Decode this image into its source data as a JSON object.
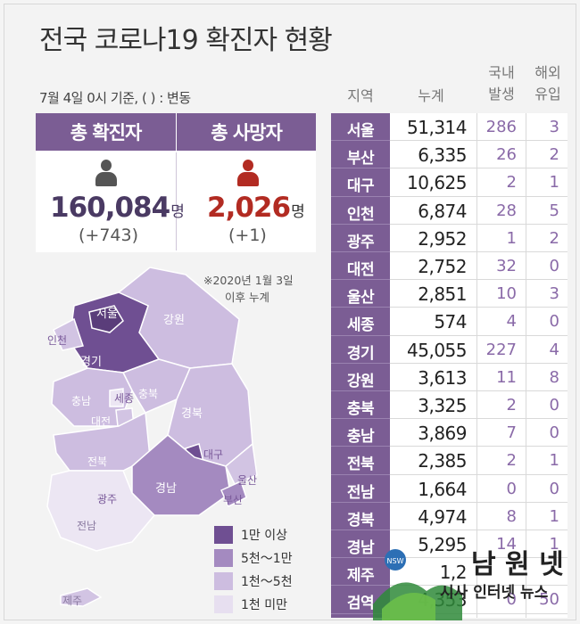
{
  "title": "전국 코로나19 확진자 현황",
  "subtitle": "7월 4일 0시 기준, ( ) : 변동",
  "summary": {
    "confirmed_label": "총 확진자",
    "confirmed_value": "160,084",
    "confirmed_unit": "명",
    "confirmed_change": "(+743)",
    "deaths_label": "총 사망자",
    "deaths_value": "2,026",
    "deaths_unit": "명",
    "deaths_change": "(+1)"
  },
  "note_line1": "※2020년 1월 3일",
  "note_line2": "이후 누계",
  "colors": {
    "purple_dark": "#7b5d94",
    "red": "#b22b22",
    "tier1": "#7a5a9a",
    "tier2": "#a98fc4",
    "tier3": "#d2c4e3",
    "tier4": "#ece6f3"
  },
  "legend": [
    {
      "label": "1만 이상",
      "color": "#6f4f92"
    },
    {
      "label": "5천～1만",
      "color": "#a48ac0"
    },
    {
      "label": "1천～5천",
      "color": "#cdbde0"
    },
    {
      "label": "1천 미만",
      "color": "#e7dff0"
    }
  ],
  "map_labels": {
    "seoul": "서울",
    "incheon": "인천",
    "gyeonggi": "경기",
    "gangwon": "강원",
    "chungbuk": "충북",
    "chungnam": "충남",
    "sejong": "세종",
    "daejeon": "대전",
    "gyeongbuk": "경북",
    "daegu": "대구",
    "jeonbuk": "전북",
    "gwangju": "광주",
    "gyeongnam": "경남",
    "ulsan": "울산",
    "busan": "부산",
    "jeonnam": "전남",
    "jeju": "제주"
  },
  "table_headers": {
    "region": "지역",
    "total": "누계",
    "local": "국내\n발생",
    "local_line1": "국내",
    "local_line2": "발생",
    "overseas_line1": "해외",
    "overseas_line2": "유입"
  },
  "chart_data": {
    "type": "table",
    "title": "전국 코로나19 확진자 현황",
    "columns": [
      "지역",
      "누계",
      "국내 발생",
      "해외 유입"
    ],
    "rows": [
      {
        "region": "서울",
        "total": "51,314",
        "local": "286",
        "overseas": "3"
      },
      {
        "region": "부산",
        "total": "6,335",
        "local": "26",
        "overseas": "2"
      },
      {
        "region": "대구",
        "total": "10,625",
        "local": "2",
        "overseas": "1"
      },
      {
        "region": "인천",
        "total": "6,874",
        "local": "28",
        "overseas": "5"
      },
      {
        "region": "광주",
        "total": "2,952",
        "local": "1",
        "overseas": "2"
      },
      {
        "region": "대전",
        "total": "2,752",
        "local": "32",
        "overseas": "0"
      },
      {
        "region": "울산",
        "total": "2,851",
        "local": "10",
        "overseas": "3"
      },
      {
        "region": "세종",
        "total": "574",
        "local": "4",
        "overseas": "0"
      },
      {
        "region": "경기",
        "total": "45,055",
        "local": "227",
        "overseas": "4"
      },
      {
        "region": "강원",
        "total": "3,613",
        "local": "11",
        "overseas": "8"
      },
      {
        "region": "충북",
        "total": "3,325",
        "local": "2",
        "overseas": "0"
      },
      {
        "region": "충남",
        "total": "3,869",
        "local": "7",
        "overseas": "0"
      },
      {
        "region": "전북",
        "total": "2,385",
        "local": "2",
        "overseas": "1"
      },
      {
        "region": "전남",
        "total": "1,664",
        "local": "0",
        "overseas": "0"
      },
      {
        "region": "경북",
        "total": "4,974",
        "local": "8",
        "overseas": "1"
      },
      {
        "region": "경남",
        "total": "5,295",
        "local": "14",
        "overseas": "1"
      },
      {
        "region": "제주",
        "total": "1,2",
        "local": "",
        "overseas": ""
      },
      {
        "region": "검역",
        "total": "4,353",
        "local": "0",
        "overseas": "50"
      }
    ]
  },
  "watermark": {
    "logo_text": "NSW",
    "brand": "남 원 넷",
    "tagline": "시사 인터넷 뉴스"
  }
}
